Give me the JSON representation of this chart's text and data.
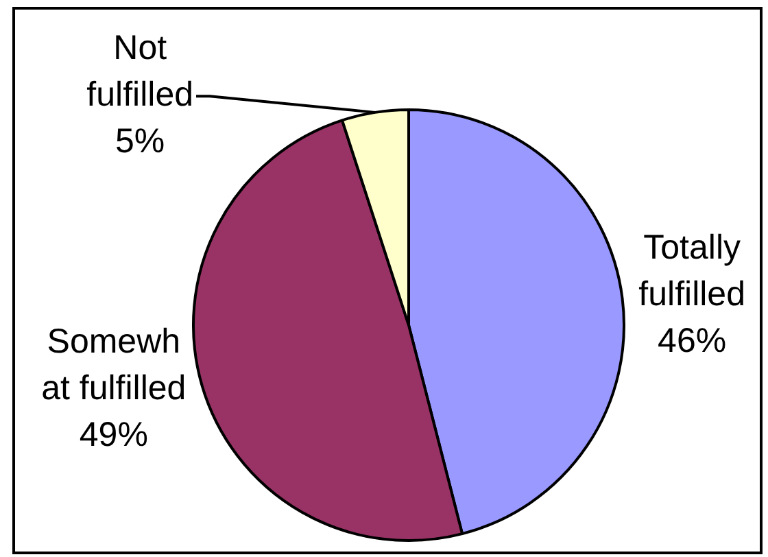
{
  "chart_data": {
    "type": "pie",
    "categories": [
      "Totally fulfilled",
      "Somewh at fulfilled",
      "Not fulfilled"
    ],
    "values": [
      46,
      49,
      5
    ],
    "value_labels": [
      "46%",
      "49%",
      "5%"
    ],
    "colors": [
      "#9999ff",
      "#993366",
      "#ffffcc"
    ]
  }
}
